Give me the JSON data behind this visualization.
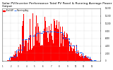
{
  "title": "Solar PV/Inverter Performance Total PV Panel & Running Average Power Output",
  "title_fontsize": 3.2,
  "legend_labels": [
    "Total kW",
    "Running Avg"
  ],
  "bar_color": "#ff0000",
  "avg_color": "#0055ff",
  "bg_color": "#ffffff",
  "plot_bg_color": "#ffffff",
  "grid_color": "#aaaaaa",
  "ylim": [
    0,
    14000
  ],
  "ytick_values": [
    0,
    2000,
    4000,
    6000,
    8000,
    10000,
    12000,
    14000
  ],
  "n_days": 365,
  "n_bars_per_day": 1,
  "seed": 7
}
